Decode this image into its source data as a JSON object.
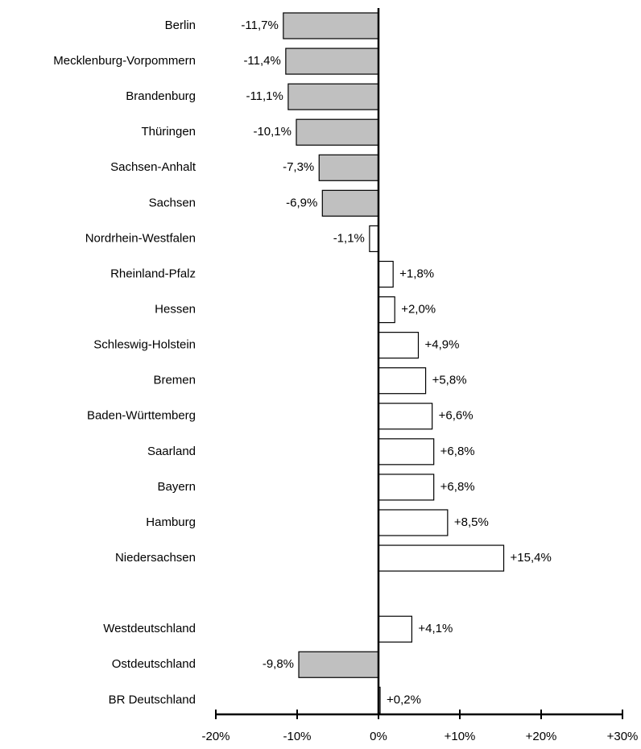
{
  "chart_data": {
    "type": "bar",
    "orientation": "horizontal",
    "categories": [
      "Berlin",
      "Mecklenburg-Vorpommern",
      "Brandenburg",
      "Thüringen",
      "Sachsen-Anhalt",
      "Sachsen",
      "Nordrhein-Westfalen",
      "Rheinland-Pfalz",
      "Hessen",
      "Schleswig-Holstein",
      "Bremen",
      "Baden-Württemberg",
      "Saarland",
      "Bayern",
      "Hamburg",
      "Niedersachsen",
      null,
      "Westdeutschland",
      "Ostdeutschland",
      "BR Deutschland"
    ],
    "values": [
      -11.7,
      -11.4,
      -11.1,
      -10.1,
      -7.3,
      -6.9,
      -1.1,
      1.8,
      2.0,
      4.9,
      5.8,
      6.6,
      6.8,
      6.8,
      8.5,
      15.4,
      null,
      4.1,
      -9.8,
      0.2
    ],
    "value_labels": [
      "-11,7%",
      "-11,4%",
      "-11,1%",
      "-10,1%",
      "-7,3%",
      "-6,9%",
      "-1,1%",
      "+1,8%",
      "+2,0%",
      "+4,9%",
      "+5,8%",
      "+6,6%",
      "+6,8%",
      "+6,8%",
      "+8,5%",
      "+15,4%",
      null,
      "+4,1%",
      "-9,8%",
      "+0,2%"
    ],
    "colors": [
      "#c0c0c0",
      "#c0c0c0",
      "#c0c0c0",
      "#c0c0c0",
      "#c0c0c0",
      "#c0c0c0",
      "#ffffff",
      "#ffffff",
      "#ffffff",
      "#ffffff",
      "#ffffff",
      "#ffffff",
      "#ffffff",
      "#ffffff",
      "#ffffff",
      "#ffffff",
      null,
      "#ffffff",
      "#c0c0c0",
      "#ffffff"
    ],
    "xlim": [
      -20,
      30
    ],
    "xticks": [
      {
        "value": -20,
        "label": "-20%"
      },
      {
        "value": -10,
        "label": "-10%"
      },
      {
        "value": 0,
        "label": "0%"
      },
      {
        "value": 10,
        "label": "+10%"
      },
      {
        "value": 20,
        "label": "+20%"
      },
      {
        "value": 30,
        "label": "+30%"
      }
    ],
    "grid": false
  }
}
